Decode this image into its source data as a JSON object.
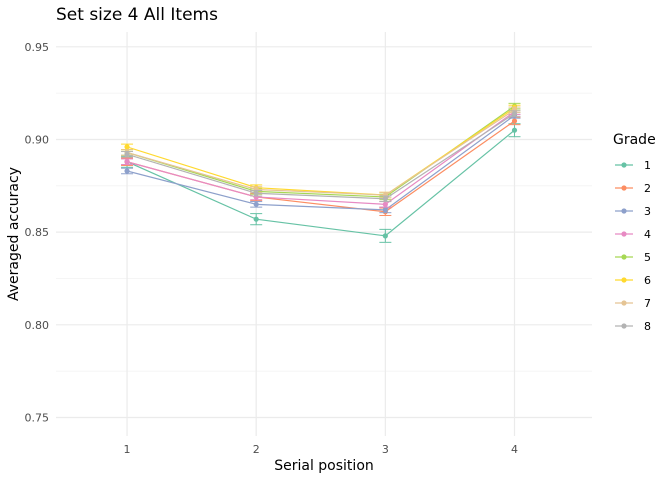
{
  "chart_data": {
    "type": "line",
    "title": "Set size 4 All Items",
    "xlabel": "Serial position",
    "ylabel": "Averaged accuracy",
    "x": [
      1,
      2,
      3,
      4
    ],
    "xlim": [
      0.45,
      4.6
    ],
    "ylim": [
      0.74,
      0.958
    ],
    "yticks": [
      0.75,
      0.8,
      0.85,
      0.9,
      0.95
    ],
    "ytick_labels": [
      "0.75",
      "0.80",
      "0.85",
      "0.90",
      "0.95"
    ],
    "grid": true,
    "legend": {
      "title": "Grade",
      "position": "right"
    },
    "series": [
      {
        "name": "1",
        "color": "#66C2A5",
        "values": [
          0.888,
          0.857,
          0.848,
          0.905
        ],
        "err": [
          0.003,
          0.003,
          0.0035,
          0.0035
        ]
      },
      {
        "name": "2",
        "color": "#FC8D62",
        "values": [
          0.888,
          0.869,
          0.861,
          0.91
        ],
        "err": [
          0.002,
          0.002,
          0.002,
          0.002
        ]
      },
      {
        "name": "3",
        "color": "#8DA0CB",
        "values": [
          0.883,
          0.865,
          0.862,
          0.913
        ],
        "err": [
          0.0015,
          0.0015,
          0.0015,
          0.0015
        ]
      },
      {
        "name": "4",
        "color": "#E78AC3",
        "values": [
          0.888,
          0.869,
          0.865,
          0.915
        ],
        "err": [
          0.0015,
          0.0015,
          0.0015,
          0.0015
        ]
      },
      {
        "name": "5",
        "color": "#A6D854",
        "values": [
          0.893,
          0.872,
          0.869,
          0.918
        ],
        "err": [
          0.0015,
          0.0015,
          0.0015,
          0.0015
        ]
      },
      {
        "name": "6",
        "color": "#FFD92F",
        "values": [
          0.896,
          0.874,
          0.87,
          0.917
        ],
        "err": [
          0.0015,
          0.0015,
          0.0015,
          0.0015
        ]
      },
      {
        "name": "7",
        "color": "#E5C494",
        "values": [
          0.893,
          0.873,
          0.87,
          0.916
        ],
        "err": [
          0.0015,
          0.0015,
          0.0015,
          0.0015
        ]
      },
      {
        "name": "8",
        "color": "#B3B3B3",
        "values": [
          0.892,
          0.871,
          0.868,
          0.914
        ],
        "err": [
          0.0015,
          0.0015,
          0.0015,
          0.0015
        ]
      }
    ]
  }
}
